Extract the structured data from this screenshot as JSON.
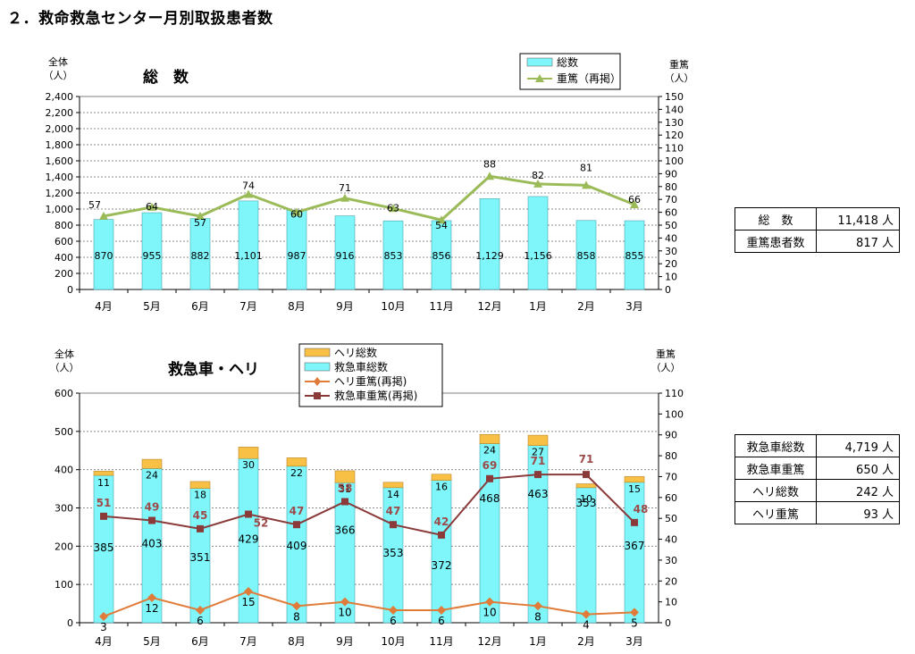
{
  "title": "２．救命救急センター月別取扱患者数",
  "chart_data": [
    {
      "id": "total",
      "type": "bar+line",
      "title": "総　数",
      "left_axis_label": [
        "全体",
        "（人）"
      ],
      "right_axis_label": [
        "重篤",
        "（人）"
      ],
      "categories": [
        "4月",
        "5月",
        "6月",
        "7月",
        "8月",
        "9月",
        "10月",
        "11月",
        "12月",
        "1月",
        "2月",
        "3月"
      ],
      "ylim_left": [
        0,
        2400
      ],
      "ystep_left": 200,
      "ylim_right": [
        0,
        150
      ],
      "ystep_right": 10,
      "left_tick_labels": [
        "0",
        "200",
        "400",
        "600",
        "800",
        "1,000",
        "1,200",
        "1,400",
        "1,600",
        "1,800",
        "2,000",
        "2,200",
        "2,400"
      ],
      "series": [
        {
          "name": "総数",
          "type": "bar",
          "axis": "left",
          "color": "#7FF6FA",
          "values": [
            870,
            955,
            882,
            1101,
            987,
            916,
            853,
            856,
            1129,
            1156,
            858,
            855
          ],
          "labels": [
            "870",
            "955",
            "882",
            "1,101",
            "987",
            "916",
            "853",
            "856",
            "1,129",
            "1,156",
            "858",
            "855"
          ]
        },
        {
          "name": "重篤（再掲）",
          "type": "line",
          "axis": "right",
          "color": "#9BBB59",
          "values": [
            57,
            64,
            57,
            74,
            60,
            71,
            63,
            54,
            88,
            82,
            81,
            66
          ],
          "labels": [
            "57",
            "64",
            "57",
            "74",
            "60",
            "71",
            "63",
            "54",
            "88",
            "82",
            "81",
            "66"
          ]
        }
      ]
    },
    {
      "id": "ambulance",
      "type": "stacked-bar+line",
      "title": "救急車・ヘリ",
      "left_axis_label": [
        "全体",
        "（人）"
      ],
      "right_axis_label": [
        "重篤",
        "（人）"
      ],
      "categories": [
        "4月",
        "5月",
        "6月",
        "7月",
        "8月",
        "9月",
        "10月",
        "11月",
        "12月",
        "1月",
        "2月",
        "3月"
      ],
      "ylim_left": [
        0,
        600
      ],
      "ystep_left": 100,
      "ylim_right": [
        0,
        110
      ],
      "ystep_right": 10,
      "left_tick_labels": [
        "0",
        "100",
        "200",
        "300",
        "400",
        "500",
        "600"
      ],
      "series": [
        {
          "name": "ヘリ総数",
          "type": "bar",
          "stack": "top",
          "axis": "left",
          "color": "#F8C146",
          "values": [
            11,
            24,
            18,
            30,
            22,
            31,
            14,
            16,
            24,
            27,
            10,
            15
          ]
        },
        {
          "name": "救急車総数",
          "type": "bar",
          "stack": "bottom",
          "axis": "left",
          "color": "#7FF6FA",
          "values": [
            385,
            403,
            351,
            429,
            409,
            366,
            353,
            372,
            468,
            463,
            353,
            367
          ]
        },
        {
          "name": "ヘリ重篤(再掲)",
          "type": "line",
          "axis": "right",
          "color": "#E07B39",
          "values": [
            3,
            12,
            6,
            15,
            8,
            10,
            6,
            6,
            10,
            8,
            4,
            5
          ]
        },
        {
          "name": "救急車重篤(再掲)",
          "type": "line",
          "axis": "right",
          "color": "#8B3A3A",
          "values": [
            51,
            49,
            45,
            52,
            47,
            58,
            47,
            42,
            69,
            71,
            71,
            48
          ]
        }
      ]
    }
  ],
  "summary_total": [
    {
      "label": "総　数",
      "value": "11,418 人"
    },
    {
      "label": "重篤患者数",
      "value": "817 人"
    }
  ],
  "summary_ambulance": [
    {
      "label": "救急車総数",
      "value": "4,719 人"
    },
    {
      "label": "救急車重篤",
      "value": "650 人"
    },
    {
      "label": "ヘリ総数",
      "value": "242 人"
    },
    {
      "label": "ヘリ重篤",
      "value": "93 人"
    }
  ]
}
